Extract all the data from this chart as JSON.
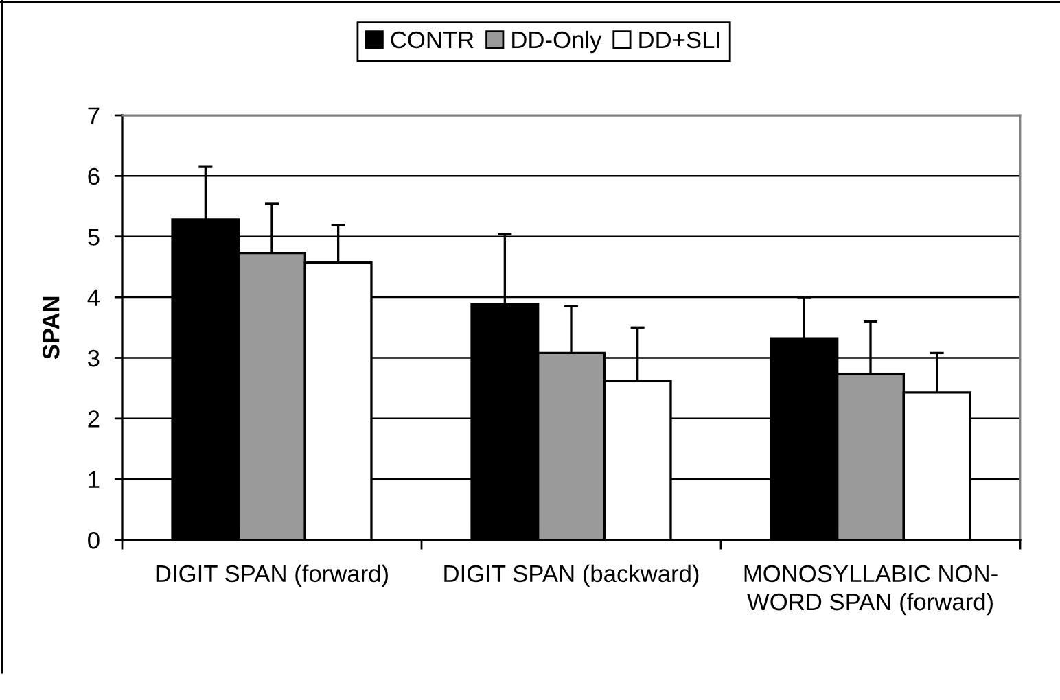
{
  "chart_data": {
    "type": "bar",
    "ylabel": "SPAN",
    "categories": [
      "DIGIT SPAN (forward)",
      "DIGIT SPAN (backward)",
      "MONOSYLLABIC NON-WORD SPAN (forward)"
    ],
    "series": [
      {
        "name": "CONTR",
        "color": "#000000",
        "values": [
          5.28,
          3.89,
          3.32
        ],
        "errors": [
          [
            5.28,
            6.15
          ],
          [
            3.89,
            5.04
          ],
          [
            3.32,
            4.0
          ]
        ]
      },
      {
        "name": "DD-Only",
        "color": "#9a9a9a",
        "values": [
          4.73,
          3.08,
          2.73
        ],
        "errors": [
          [
            4.73,
            5.54
          ],
          [
            3.08,
            3.85
          ],
          [
            2.73,
            3.6
          ]
        ]
      },
      {
        "name": "DD+SLI",
        "color": "#ffffff",
        "values": [
          4.57,
          2.62,
          2.43
        ],
        "errors": [
          [
            4.57,
            5.19
          ],
          [
            2.62,
            3.5
          ],
          [
            2.43,
            3.08
          ]
        ]
      }
    ],
    "ylim": [
      0,
      7
    ],
    "yticks": [
      0,
      1,
      2,
      3,
      4,
      5,
      6,
      7
    ],
    "grid": "y",
    "legend": "top"
  }
}
